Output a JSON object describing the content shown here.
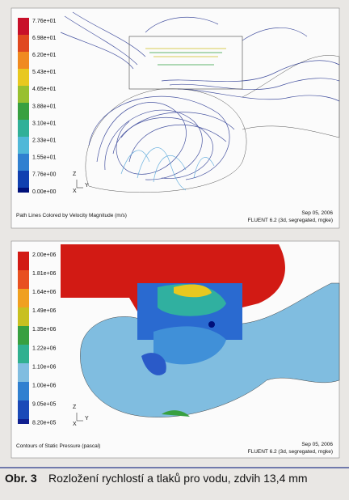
{
  "top_panel": {
    "legend_labels": [
      "7.76e+01",
      "6.98e+01",
      "6.20e+01",
      "5.43e+01",
      "4.65e+01",
      "3.88e+01",
      "3.10e+01",
      "2.33e+01",
      "1.55e+01",
      "7.76e+00",
      "0.00e+00"
    ],
    "axes": [
      "Z",
      "Y",
      "X"
    ],
    "footer_left": "Path Lines Colored by Velocity Magnitude (m/s)",
    "date": "Sep 05, 2006",
    "solver": "FLUENT 6.2 (3d, segregated, rngke)"
  },
  "bottom_panel": {
    "legend_labels": [
      "2.00e+06",
      "1.81e+06",
      "1.64e+06",
      "1.49e+06",
      "1.35e+06",
      "1.22e+06",
      "1.10e+06",
      "1.00e+06",
      "9.05e+05",
      "8.20e+05"
    ],
    "axes": [
      "Z",
      "Y",
      "X"
    ],
    "footer_left": "Contours of Static Pressure (pascal)",
    "date": "Sep 05, 2006",
    "solver": "FLUENT 6.2 (3d, segregated, rngke)"
  },
  "caption": {
    "label": "Obr. 3",
    "text": "Rozložení rychlostí a tlaků pro vodu, zdvih 13,4 mm"
  }
}
